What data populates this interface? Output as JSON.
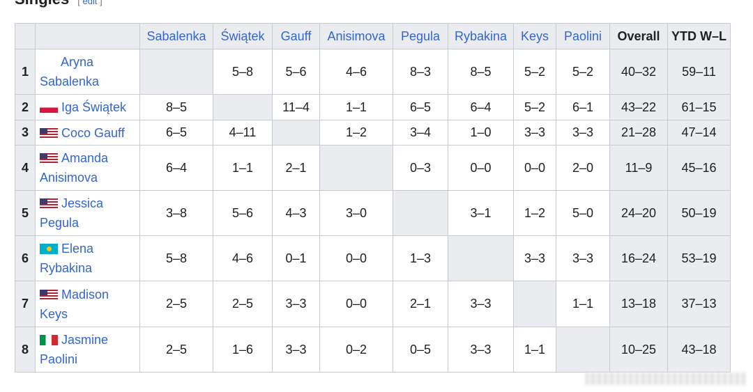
{
  "heading": {
    "title": "Singles",
    "edit": "edit"
  },
  "columns": [
    "Sabalenka",
    "Świątek",
    "Gauff",
    "Anisimova",
    "Pegula",
    "Rybakina",
    "Keys",
    "Paolini",
    "Overall",
    "YTD W–L"
  ],
  "rows": [
    {
      "rank": "1",
      "name": "Aryna Sabalenka",
      "flag": "none",
      "results": [
        "",
        "5–8",
        "5–6",
        "4–6",
        "8–3",
        "8–5",
        "5–2",
        "5–2"
      ],
      "overall": "40–32",
      "ytd": "59–11"
    },
    {
      "rank": "2",
      "name": "Iga Świątek",
      "flag": "poland-flag",
      "results": [
        "8–5",
        "",
        "11–4",
        "1–1",
        "6–5",
        "6–4",
        "5–2",
        "6–1"
      ],
      "overall": "43–22",
      "ytd": "61–15"
    },
    {
      "rank": "3",
      "name": "Coco Gauff",
      "flag": "usa-flag",
      "results": [
        "6–5",
        "4–11",
        "",
        "1–2",
        "3–4",
        "1–0",
        "3–3",
        "3–3"
      ],
      "overall": "21–28",
      "ytd": "47–14"
    },
    {
      "rank": "4",
      "name": "Amanda Anisimova",
      "flag": "usa-flag",
      "results": [
        "6–4",
        "1–1",
        "2–1",
        "",
        "0–3",
        "0–0",
        "0–0",
        "2–0"
      ],
      "overall": "11–9",
      "ytd": "45–16"
    },
    {
      "rank": "5",
      "name": "Jessica Pegula",
      "flag": "usa-flag",
      "results": [
        "3–8",
        "5–6",
        "4–3",
        "3–0",
        "",
        "3–1",
        "1–2",
        "5–0"
      ],
      "overall": "24–20",
      "ytd": "50–19"
    },
    {
      "rank": "6",
      "name": "Elena Rybakina",
      "flag": "kazakhstan-flag",
      "results": [
        "5–8",
        "4–6",
        "0–1",
        "0–0",
        "1–3",
        "",
        "3–3",
        "3–3"
      ],
      "overall": "16–24",
      "ytd": "53–19"
    },
    {
      "rank": "7",
      "name": "Madison Keys",
      "flag": "usa-flag",
      "results": [
        "2–5",
        "2–5",
        "3–3",
        "0–0",
        "2–1",
        "3–3",
        "",
        "1–1"
      ],
      "overall": "13–18",
      "ytd": "37–13"
    },
    {
      "rank": "8",
      "name": "Jasmine Paolini",
      "flag": "italy-flag",
      "results": [
        "2–5",
        "1–6",
        "3–3",
        "0–2",
        "0–5",
        "3–3",
        "1–1",
        ""
      ],
      "overall": "10–25",
      "ytd": "43–18"
    }
  ]
}
